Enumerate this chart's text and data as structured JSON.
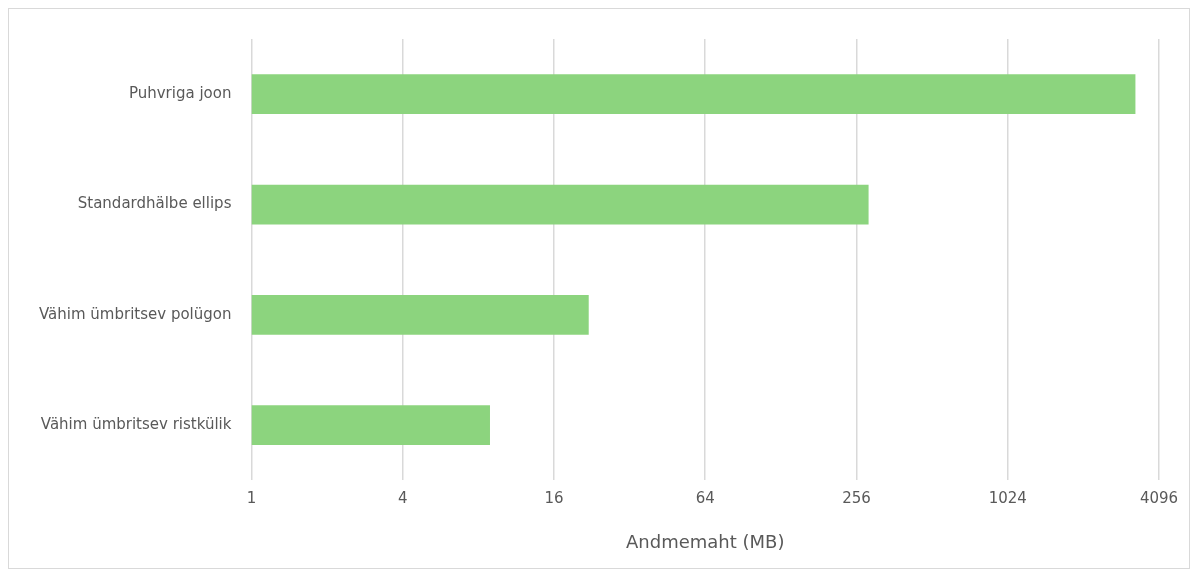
{
  "chart_data": {
    "type": "bar",
    "orientation": "horizontal",
    "xlabel": "Andmemaht (MB)",
    "categories": [
      "Puhvriga joon",
      "Standardhälbe ellips",
      "Vähim ümbritsev polügon",
      "Vähim ümbritsev ristkülik"
    ],
    "values": [
      3300,
      286,
      22,
      8.9
    ],
    "color": "#8cd47e",
    "log": "x",
    "xlim": [
      1,
      4096
    ],
    "xticks": [
      1,
      4,
      16,
      64,
      256,
      1024,
      4096
    ],
    "grid": "x",
    "legend": false
  }
}
